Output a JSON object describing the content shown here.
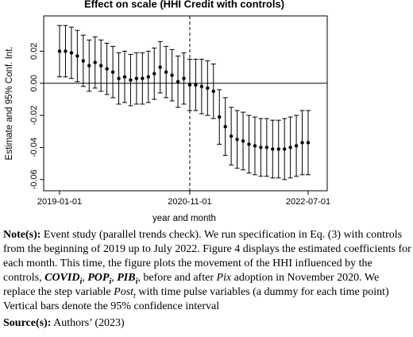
{
  "chart_data": {
    "type": "errorbar",
    "title": "Effect on scale (HHI Credit with controls)",
    "x_label": "year and month",
    "y_label": "Estimate and 95% Conf. Int.",
    "categories": [
      "2019-01-01",
      null,
      null,
      null,
      null,
      null,
      null,
      null,
      null,
      null,
      null,
      null,
      null,
      null,
      null,
      null,
      null,
      null,
      null,
      null,
      null,
      null,
      "2020-11-01",
      null,
      null,
      null,
      null,
      null,
      null,
      null,
      null,
      null,
      null,
      null,
      null,
      null,
      null,
      null,
      null,
      null,
      null,
      null,
      "2022-07-01"
    ],
    "values": [
      0.02,
      0.02,
      0.019,
      0.017,
      0.014,
      0.011,
      0.013,
      0.011,
      0.009,
      0.007,
      0.003,
      0.004,
      0.002,
      0.003,
      0.003,
      0.004,
      0.006,
      0.01,
      0.007,
      0.005,
      0.001,
      0.003,
      -0.001,
      -0.001,
      -0.002,
      -0.003,
      -0.005,
      -0.021,
      -0.027,
      -0.033,
      -0.035,
      -0.036,
      -0.038,
      -0.039,
      -0.04,
      -0.04,
      -0.041,
      -0.041,
      -0.041,
      -0.04,
      -0.039,
      -0.037,
      -0.037
    ],
    "errors": [
      0.016,
      0.016,
      0.016,
      0.016,
      0.016,
      0.016,
      0.016,
      0.016,
      0.016,
      0.016,
      0.016,
      0.016,
      0.016,
      0.016,
      0.016,
      0.016,
      0.016,
      0.016,
      0.016,
      0.016,
      0.016,
      0.016,
      0.016,
      0.016,
      0.017,
      0.017,
      0.017,
      0.017,
      0.018,
      0.018,
      0.018,
      0.018,
      0.018,
      0.018,
      0.018,
      0.018,
      0.018,
      0.018,
      0.019,
      0.019,
      0.019,
      0.02,
      0.02
    ],
    "color": "#000000",
    "ylim": [
      -0.067,
      0.042
    ],
    "yticks": [
      -0.06,
      -0.04,
      -0.02,
      {
        "value": 0,
        "label": "0.00"
      },
      0.02
    ],
    "hline": 0,
    "vline": "2020-11-01"
  },
  "note": {
    "label": "Note(s):",
    "text1": "Event study (parallel trends check). We run specification in Eq. (3) with controls from the beginning of 2019 up to July 2022. Figure 4 displays the estimated coefficients for each month. This time, the figure plots the movement of the HHI influenced by the controls,",
    "var1": "COVID",
    "var1_sub": "i",
    "var2": "POP",
    "var2_sub": "i",
    "var3": "PIB",
    "var3_sub": "i",
    "text2": ", before and after",
    "var4": "Pix",
    "text3": "adoption in November 2020. We replace the step variable",
    "var5": "Post",
    "var5_sub": "t",
    "text4": "with time pulse variables (a dummy for each time point) Vertical bars denote the 95% confidence interval"
  },
  "source": {
    "label": "Source(s):",
    "text": "Authors’ (2023)"
  }
}
